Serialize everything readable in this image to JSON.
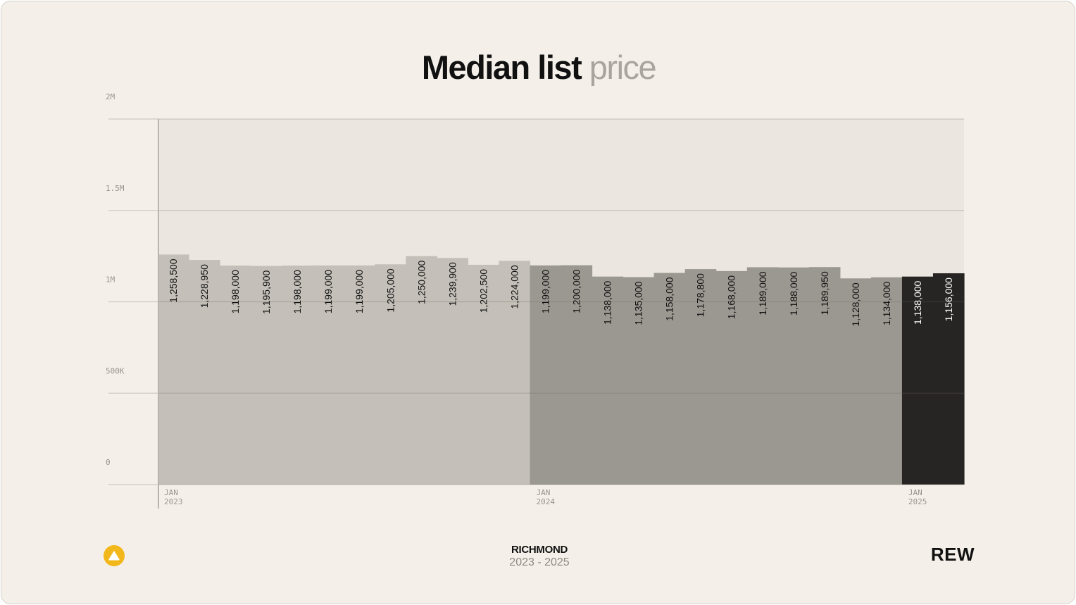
{
  "title": {
    "dark": "Median list",
    "light": "price"
  },
  "footer": {
    "region": "RICHMOND",
    "years": "2023 - 2025",
    "brand": "REW",
    "icon": "rew-triangle-logo-icon"
  },
  "colors": {
    "background": "#f4f0e9",
    "plot_area": "#ebe6df",
    "year_2023": "#c4bfb8",
    "year_2024": "#9b9891",
    "year_2025": "#262524",
    "icon": "#f2b81b"
  },
  "chart_data": {
    "type": "bar",
    "title": "Median list price",
    "ylim": [
      0,
      2000000
    ],
    "y_ticks": [
      {
        "value": 0,
        "label": "0"
      },
      {
        "value": 500000,
        "label": "500K"
      },
      {
        "value": 1000000,
        "label": "1M"
      },
      {
        "value": 1500000,
        "label": "1.5M"
      },
      {
        "value": 2000000,
        "label": "2M"
      }
    ],
    "year_markers": [
      {
        "month": "JAN",
        "year": "2023",
        "index": 0
      },
      {
        "month": "JAN",
        "year": "2024",
        "index": 12
      },
      {
        "month": "JAN",
        "year": "2025",
        "index": 24
      }
    ],
    "grid": true,
    "values": [
      1258500,
      1228950,
      1198000,
      1195900,
      1198000,
      1199000,
      1199000,
      1205000,
      1250000,
      1239900,
      1202500,
      1224000,
      1199000,
      1200000,
      1138000,
      1135000,
      1158000,
      1178800,
      1168000,
      1189000,
      1188000,
      1189950,
      1128000,
      1134000,
      1138000,
      1156000
    ],
    "labels": [
      "1,258,500",
      "1,228,950",
      "1,198,000",
      "1,195,900",
      "1,198,000",
      "1,199,000",
      "1,199,000",
      "1,205,000",
      "1,250,000",
      "1,239,900",
      "1,202,500",
      "1,224,000",
      "1,199,000",
      "1,200,000",
      "1,138,000",
      "1,135,000",
      "1,158,000",
      "1,178,800",
      "1,168,000",
      "1,189,000",
      "1,188,000",
      "1,189,950",
      "1,128,000",
      "1,134,000",
      "1,138,000",
      "1,156,000"
    ],
    "years": [
      "2023",
      "2023",
      "2023",
      "2023",
      "2023",
      "2023",
      "2023",
      "2023",
      "2023",
      "2023",
      "2023",
      "2023",
      "2024",
      "2024",
      "2024",
      "2024",
      "2024",
      "2024",
      "2024",
      "2024",
      "2024",
      "2024",
      "2024",
      "2024",
      "2025",
      "2025"
    ]
  }
}
